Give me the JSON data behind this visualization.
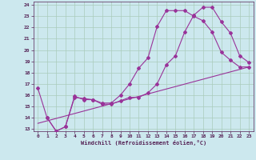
{
  "xlabel": "Windchill (Refroidissement éolien,°C)",
  "background_color": "#cce8ee",
  "grid_color": "#aaccbb",
  "line_color": "#993399",
  "xlim": [
    -0.5,
    23.5
  ],
  "ylim": [
    12.8,
    24.3
  ],
  "yticks": [
    13,
    14,
    15,
    16,
    17,
    18,
    19,
    20,
    21,
    22,
    23,
    24
  ],
  "xticks": [
    0,
    1,
    2,
    3,
    4,
    5,
    6,
    7,
    8,
    9,
    10,
    11,
    12,
    13,
    14,
    15,
    16,
    17,
    18,
    19,
    20,
    21,
    22,
    23
  ],
  "series1_x": [
    0,
    1,
    2,
    3,
    4,
    5,
    6,
    7,
    8,
    9,
    10,
    11,
    12,
    13,
    14,
    15,
    16,
    17,
    18,
    19,
    20,
    21,
    22,
    23
  ],
  "series1_y": [
    16.6,
    14.0,
    12.8,
    13.2,
    15.8,
    15.7,
    15.6,
    15.3,
    15.3,
    16.0,
    17.0,
    18.4,
    19.3,
    22.1,
    23.5,
    23.5,
    23.5,
    23.0,
    22.6,
    21.6,
    19.8,
    19.1,
    18.5,
    18.5
  ],
  "series2_x": [
    1,
    2,
    3,
    4,
    5,
    6,
    7,
    8,
    9,
    10,
    11,
    12,
    13,
    14,
    15,
    16,
    17,
    18,
    19,
    20,
    21,
    22,
    23
  ],
  "series2_y": [
    14.0,
    12.8,
    13.2,
    15.9,
    15.6,
    15.6,
    15.2,
    15.2,
    15.5,
    15.8,
    15.8,
    16.2,
    17.0,
    18.7,
    19.5,
    21.6,
    23.1,
    23.8,
    23.8,
    22.5,
    21.5,
    19.5,
    18.9
  ],
  "series3_x": [
    0,
    23
  ],
  "series3_y": [
    13.5,
    18.5
  ]
}
